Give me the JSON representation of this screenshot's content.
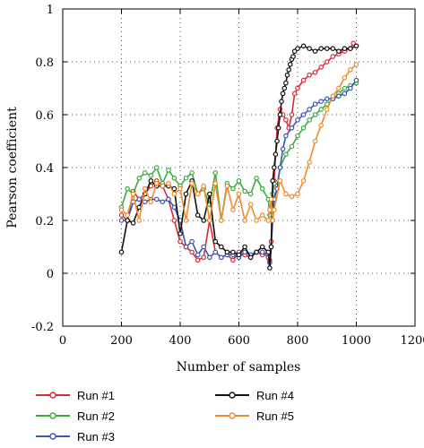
{
  "chart_data": {
    "type": "line",
    "title": "",
    "xlabel": "Number of samples",
    "ylabel": "Pearson coefficient",
    "xlim": [
      0,
      1200
    ],
    "ylim": [
      -0.2,
      1
    ],
    "xticks": [
      0,
      200,
      400,
      600,
      800,
      1000,
      1200
    ],
    "yticks": [
      -0.2,
      0,
      0.2,
      0.4,
      0.6,
      0.8,
      1
    ],
    "xtick_labels": [
      "0",
      "200",
      "400",
      "600",
      "800",
      "1000",
      "1200"
    ],
    "ytick_labels": [
      "-0.2",
      "0",
      "0.2",
      "0.4",
      "0.6",
      "0.8",
      "1"
    ],
    "grid": true,
    "legend_position": "bottom",
    "series": [
      {
        "name": "Run #1",
        "color": "#d62c3a",
        "x": [
          200,
          220,
          240,
          260,
          280,
          300,
          320,
          340,
          360,
          380,
          400,
          420,
          440,
          460,
          480,
          500,
          520,
          540,
          560,
          580,
          600,
          620,
          640,
          660,
          680,
          700,
          705,
          710,
          715,
          720,
          730,
          740,
          750,
          760,
          770,
          780,
          790,
          800,
          820,
          840,
          860,
          880,
          900,
          920,
          940,
          960,
          980,
          990,
          1000
        ],
        "y": [
          0.22,
          0.2,
          0.31,
          0.28,
          0.3,
          0.33,
          0.35,
          0.33,
          0.28,
          0.2,
          0.12,
          0.1,
          0.08,
          0.05,
          0.06,
          0.2,
          0.08,
          0.06,
          0.07,
          0.05,
          0.08,
          0.07,
          0.06,
          0.08,
          0.07,
          0.08,
          0.05,
          0.12,
          0.3,
          0.35,
          0.55,
          0.62,
          0.6,
          0.58,
          0.55,
          0.6,
          0.68,
          0.7,
          0.73,
          0.75,
          0.76,
          0.78,
          0.8,
          0.82,
          0.83,
          0.84,
          0.85,
          0.87,
          0.86
        ]
      },
      {
        "name": "Run #2",
        "color": "#3cab3c",
        "x": [
          200,
          220,
          240,
          260,
          280,
          300,
          320,
          340,
          360,
          380,
          400,
          420,
          440,
          460,
          480,
          500,
          520,
          540,
          560,
          580,
          600,
          620,
          640,
          660,
          680,
          700,
          705,
          710,
          715,
          720,
          730,
          740,
          760,
          780,
          800,
          820,
          840,
          860,
          880,
          900,
          920,
          940,
          960,
          980,
          1000
        ],
        "y": [
          0.25,
          0.32,
          0.3,
          0.36,
          0.38,
          0.37,
          0.4,
          0.34,
          0.39,
          0.36,
          0.33,
          0.36,
          0.38,
          0.3,
          0.32,
          0.26,
          0.38,
          0.2,
          0.34,
          0.32,
          0.35,
          0.31,
          0.3,
          0.36,
          0.32,
          0.28,
          0.22,
          0.25,
          0.3,
          0.34,
          0.33,
          0.4,
          0.45,
          0.48,
          0.52,
          0.55,
          0.58,
          0.6,
          0.62,
          0.64,
          0.66,
          0.68,
          0.7,
          0.71,
          0.72
        ]
      },
      {
        "name": "Run #3",
        "color": "#3b56b5",
        "x": [
          200,
          220,
          240,
          260,
          280,
          300,
          320,
          340,
          360,
          380,
          400,
          420,
          440,
          460,
          480,
          500,
          520,
          540,
          560,
          580,
          600,
          620,
          640,
          660,
          680,
          700,
          705,
          710,
          715,
          720,
          730,
          740,
          750,
          760,
          780,
          800,
          820,
          840,
          860,
          880,
          900,
          920,
          940,
          960,
          980,
          1000
        ],
        "y": [
          0.2,
          0.2,
          0.27,
          0.28,
          0.27,
          0.28,
          0.28,
          0.27,
          0.28,
          0.25,
          0.2,
          0.1,
          0.12,
          0.07,
          0.1,
          0.06,
          0.08,
          0.06,
          0.07,
          0.07,
          0.06,
          0.08,
          0.07,
          0.08,
          0.08,
          0.06,
          0.04,
          0.1,
          0.2,
          0.28,
          0.32,
          0.4,
          0.47,
          0.52,
          0.55,
          0.58,
          0.6,
          0.62,
          0.64,
          0.65,
          0.66,
          0.66,
          0.67,
          0.68,
          0.7,
          0.73
        ]
      },
      {
        "name": "Run #4",
        "color": "#111111",
        "x": [
          200,
          220,
          240,
          260,
          280,
          300,
          320,
          340,
          360,
          380,
          400,
          420,
          440,
          460,
          480,
          500,
          520,
          540,
          560,
          580,
          600,
          620,
          640,
          660,
          680,
          700,
          705,
          710,
          715,
          720,
          725,
          730,
          735,
          740,
          745,
          750,
          755,
          760,
          765,
          770,
          775,
          780,
          785,
          790,
          800,
          820,
          840,
          860,
          880,
          900,
          920,
          940,
          960,
          980,
          1000
        ],
        "y": [
          0.08,
          0.2,
          0.19,
          0.25,
          0.3,
          0.35,
          0.33,
          0.33,
          0.33,
          0.32,
          0.15,
          0.3,
          0.35,
          0.22,
          0.2,
          0.3,
          0.12,
          0.1,
          0.08,
          0.08,
          0.07,
          0.1,
          0.06,
          0.08,
          0.1,
          0.08,
          0.02,
          0.1,
          0.35,
          0.4,
          0.45,
          0.5,
          0.55,
          0.6,
          0.65,
          0.68,
          0.7,
          0.72,
          0.75,
          0.77,
          0.79,
          0.81,
          0.82,
          0.84,
          0.85,
          0.86,
          0.85,
          0.84,
          0.85,
          0.85,
          0.85,
          0.84,
          0.85,
          0.85,
          0.86
        ]
      },
      {
        "name": "Run #5",
        "color": "#f08a2c",
        "x": [
          200,
          220,
          240,
          260,
          280,
          300,
          320,
          340,
          360,
          380,
          400,
          420,
          440,
          460,
          480,
          500,
          520,
          540,
          560,
          580,
          600,
          620,
          640,
          660,
          680,
          700,
          705,
          710,
          715,
          720,
          740,
          760,
          780,
          800,
          820,
          840,
          860,
          880,
          900,
          920,
          940,
          960,
          980,
          1000
        ],
        "y": [
          0.24,
          0.22,
          0.3,
          0.2,
          0.32,
          0.27,
          0.34,
          0.33,
          0.34,
          0.3,
          0.32,
          0.2,
          0.34,
          0.3,
          0.33,
          0.2,
          0.34,
          0.2,
          0.33,
          0.24,
          0.3,
          0.2,
          0.26,
          0.2,
          0.22,
          0.2,
          0.24,
          0.28,
          0.2,
          0.24,
          0.35,
          0.3,
          0.29,
          0.3,
          0.35,
          0.42,
          0.5,
          0.56,
          0.62,
          0.67,
          0.7,
          0.74,
          0.77,
          0.79
        ]
      }
    ]
  }
}
